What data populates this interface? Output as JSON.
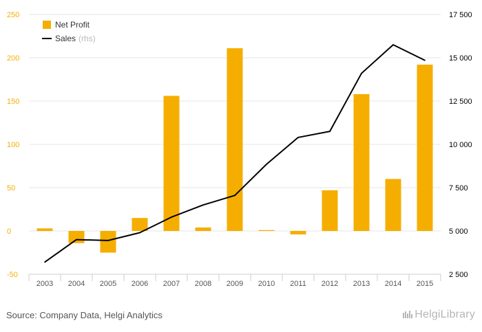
{
  "chart_data": {
    "type": "bar",
    "categories": [
      "2003",
      "2004",
      "2005",
      "2006",
      "2007",
      "2008",
      "2009",
      "2010",
      "2011",
      "2012",
      "2013",
      "2014",
      "2015"
    ],
    "series": [
      {
        "name": "Net Profit",
        "kind": "bar",
        "axis": "left",
        "color": "#f5ae00",
        "values": [
          3,
          -14,
          -25,
          15,
          156,
          4,
          211,
          1,
          -4,
          47,
          158,
          60,
          192
        ]
      },
      {
        "name": "Sales",
        "name_suffix": "(rhs)",
        "kind": "line",
        "axis": "right",
        "color": "#000000",
        "values": [
          3200,
          4500,
          4450,
          4900,
          5800,
          6500,
          7050,
          8850,
          10400,
          10750,
          14100,
          15750,
          14850
        ]
      }
    ],
    "y_left": {
      "ylim": [
        -50,
        250
      ],
      "ticks": [
        250,
        200,
        150,
        100,
        50,
        0,
        -50
      ],
      "tick_labels": [
        "250",
        "200",
        "150",
        "100",
        "50",
        "0",
        "-50"
      ]
    },
    "y_right": {
      "ylim": [
        2500,
        17500
      ],
      "ticks": [
        17500,
        15000,
        12500,
        10000,
        7500,
        5000,
        2500
      ],
      "tick_labels": [
        "17 500",
        "15 000",
        "12 500",
        "10 000",
        "7 500",
        "5 000",
        "2 500"
      ]
    },
    "grid": true,
    "legend_position": "top-left"
  },
  "footer": {
    "source": "Source: Company Data, Helgi Analytics",
    "logo_text": "HelgiLibrary"
  }
}
